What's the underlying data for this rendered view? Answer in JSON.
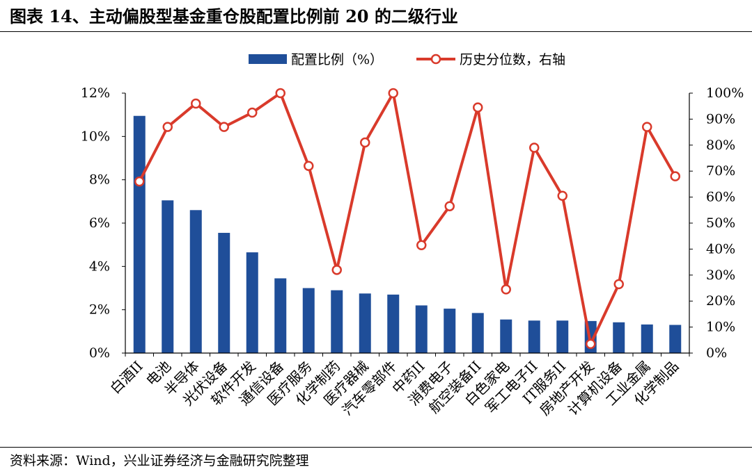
{
  "figure": {
    "title": "图表 14、主动偏股型基金重仓股配置比例前 20 的二级行业",
    "source": "资料来源：Wind，兴业证券经济与金融研究院整理"
  },
  "chart_data": {
    "type": "bar+line",
    "categories": [
      "白酒II",
      "电池",
      "半导体",
      "光伏设备",
      "软件开发",
      "通信设备",
      "医疗服务",
      "化学制药",
      "医疗器械",
      "汽车零部件",
      "中药II",
      "消费电子",
      "航空装备II",
      "白色家电",
      "军工电子II",
      "IT服务II",
      "房地产开发",
      "计算机设备",
      "工业金属",
      "化学制品"
    ],
    "series": [
      {
        "name": "配置比例（%）",
        "type": "bar",
        "axis": "left",
        "color": "#1f4e99",
        "values": [
          10.95,
          7.05,
          6.6,
          5.55,
          4.65,
          3.45,
          3.0,
          2.9,
          2.75,
          2.7,
          2.2,
          2.05,
          1.85,
          1.55,
          1.5,
          1.5,
          1.48,
          1.42,
          1.32,
          1.3
        ]
      },
      {
        "name": "历史分位数，右轴",
        "type": "line",
        "axis": "right",
        "color": "#d93a2b",
        "values": [
          66,
          87,
          96,
          87,
          92.5,
          100,
          72,
          32,
          81,
          100,
          41.5,
          56.5,
          94.5,
          24.5,
          79,
          60.5,
          3.5,
          26.5,
          87,
          68
        ]
      }
    ],
    "y_left": {
      "min": 0,
      "max": 12,
      "step": 2,
      "suffix": "%"
    },
    "y_right": {
      "min": 0,
      "max": 100,
      "step": 10,
      "suffix": "%"
    },
    "legend": {
      "position": "top-center"
    },
    "grid": false
  }
}
